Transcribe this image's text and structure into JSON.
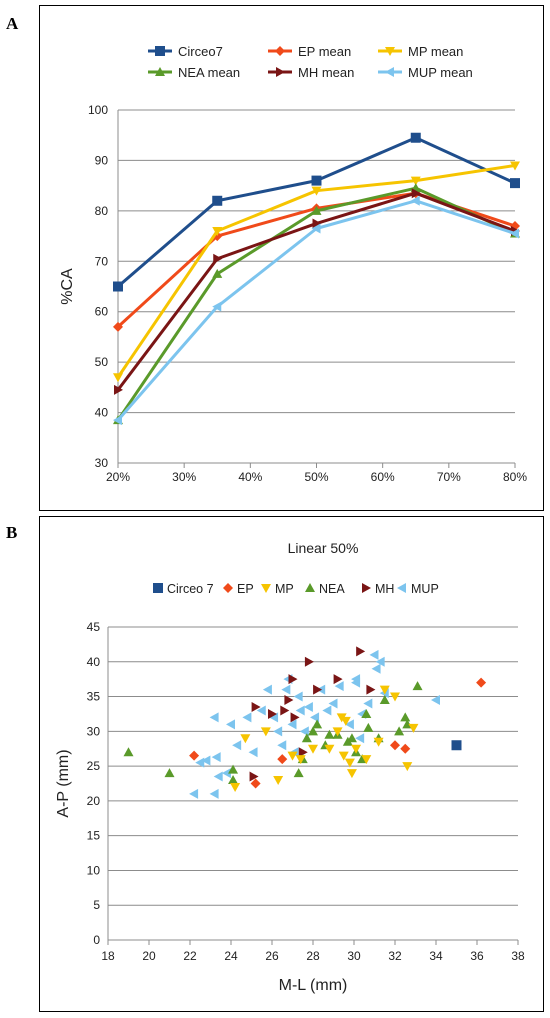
{
  "panels": {
    "a_label": "A",
    "b_label": "B"
  },
  "chart_data": [
    {
      "type": "line",
      "title": "",
      "xlabel": "",
      "ylabel": "%CA",
      "categories": [
        "20%",
        "35%",
        "50%",
        "65%",
        "80%"
      ],
      "x_ticks": [
        "20%",
        "30%",
        "40%",
        "50%",
        "60%",
        "70%",
        "80%"
      ],
      "ylim": [
        30,
        100
      ],
      "y_ticks": [
        "30",
        "40",
        "50",
        "60",
        "70",
        "80",
        "90",
        "100"
      ],
      "grid": true,
      "legend_position": "top",
      "series": [
        {
          "name": "Circeo7",
          "color": "#1f4e8c",
          "marker": "square",
          "values": [
            65,
            82,
            86,
            94.5,
            85.5
          ]
        },
        {
          "name": "EP mean",
          "color": "#f04a1a",
          "marker": "diamond",
          "values": [
            57,
            75,
            80.5,
            83.5,
            77
          ]
        },
        {
          "name": "MP mean",
          "color": "#f6c400",
          "marker": "triangle-down",
          "values": [
            47,
            76,
            84,
            86,
            89
          ]
        },
        {
          "name": "NEA mean",
          "color": "#5a9a2a",
          "marker": "triangle-up",
          "values": [
            38.5,
            67.5,
            80,
            84.5,
            75.5
          ]
        },
        {
          "name": "MH mean",
          "color": "#7a1515",
          "marker": "triangle-right",
          "values": [
            44.5,
            70.5,
            77.5,
            83.5,
            76
          ]
        },
        {
          "name": "MUP mean",
          "color": "#7cc4ee",
          "marker": "triangle-left",
          "values": [
            38.5,
            61,
            76.5,
            82,
            75.5
          ]
        }
      ]
    },
    {
      "type": "scatter",
      "title": "Linear 50%",
      "xlabel": "M-L (mm)",
      "ylabel": "A-P (mm)",
      "xlim": [
        18,
        38
      ],
      "ylim": [
        0,
        45
      ],
      "x_ticks": [
        "18",
        "20",
        "22",
        "24",
        "26",
        "28",
        "30",
        "32",
        "34",
        "36",
        "38"
      ],
      "y_ticks": [
        "0",
        "5",
        "10",
        "15",
        "20",
        "25",
        "30",
        "35",
        "40",
        "45"
      ],
      "grid": true,
      "legend_position": "top",
      "series": [
        {
          "name": "Circeo 7",
          "color": "#1f4e8c",
          "marker": "square",
          "points": [
            [
              35,
              28
            ]
          ]
        },
        {
          "name": "EP",
          "color": "#f04a1a",
          "marker": "diamond",
          "points": [
            [
              22.2,
              26.5
            ],
            [
              25.2,
              22.5
            ],
            [
              26.5,
              26
            ],
            [
              32,
              28
            ],
            [
              32.5,
              27.5
            ],
            [
              36.2,
              37
            ]
          ]
        },
        {
          "name": "MP",
          "color": "#f6c400",
          "marker": "triangle-down",
          "points": [
            [
              24.2,
              22
            ],
            [
              24.7,
              29
            ],
            [
              25.7,
              30
            ],
            [
              26.3,
              23
            ],
            [
              27,
              26.5
            ],
            [
              27.4,
              26
            ],
            [
              28,
              27.5
            ],
            [
              28.8,
              27.5
            ],
            [
              29.2,
              30
            ],
            [
              29.4,
              32
            ],
            [
              29.6,
              31.5
            ],
            [
              29.5,
              26.5
            ],
            [
              29.8,
              25.5
            ],
            [
              29.9,
              24
            ],
            [
              30.1,
              27.5
            ],
            [
              30.6,
              26
            ],
            [
              31.2,
              28.5
            ],
            [
              31.5,
              36
            ],
            [
              32,
              35
            ],
            [
              32.6,
              25
            ],
            [
              32.9,
              30.5
            ]
          ]
        },
        {
          "name": "NEA",
          "color": "#5a9a2a",
          "marker": "triangle-up",
          "points": [
            [
              19,
              27
            ],
            [
              21,
              24
            ],
            [
              24.1,
              24.5
            ],
            [
              24.1,
              23
            ],
            [
              27.3,
              24
            ],
            [
              27.5,
              26
            ],
            [
              27.7,
              29
            ],
            [
              28,
              30
            ],
            [
              28.2,
              31
            ],
            [
              28.6,
              28
            ],
            [
              28.8,
              29.5
            ],
            [
              29.2,
              29.5
            ],
            [
              29.7,
              28.5
            ],
            [
              29.9,
              29
            ],
            [
              30.1,
              27
            ],
            [
              30.4,
              26
            ],
            [
              30.7,
              30.5
            ],
            [
              30.6,
              32.5
            ],
            [
              31.2,
              29
            ],
            [
              31.5,
              34.5
            ],
            [
              32.2,
              30
            ],
            [
              32.5,
              32
            ],
            [
              32.6,
              31
            ],
            [
              33.1,
              36.5
            ]
          ]
        },
        {
          "name": "MH",
          "color": "#7a1515",
          "marker": "triangle-right",
          "points": [
            [
              25.1,
              23.5
            ],
            [
              25.2,
              33.5
            ],
            [
              26,
              32.5
            ],
            [
              26.6,
              33
            ],
            [
              26.8,
              34.5
            ],
            [
              27.1,
              32
            ],
            [
              27,
              37.5
            ],
            [
              27.5,
              27
            ],
            [
              27.8,
              40
            ],
            [
              28.2,
              36
            ],
            [
              29.2,
              37.5
            ],
            [
              30.3,
              41.5
            ],
            [
              30.8,
              36
            ]
          ]
        },
        {
          "name": "MUP",
          "color": "#7cc4ee",
          "marker": "triangle-left",
          "points": [
            [
              22.2,
              21
            ],
            [
              23.2,
              21
            ],
            [
              22.5,
              25.5
            ],
            [
              22.8,
              25.8
            ],
            [
              23.3,
              26.3
            ],
            [
              23.2,
              32
            ],
            [
              23.4,
              23.5
            ],
            [
              23.8,
              24
            ],
            [
              24,
              31
            ],
            [
              24.3,
              28
            ],
            [
              24.8,
              32
            ],
            [
              25.1,
              27
            ],
            [
              25.5,
              33
            ],
            [
              25.8,
              36
            ],
            [
              26.1,
              32
            ],
            [
              26.3,
              30
            ],
            [
              26.5,
              28
            ],
            [
              26.7,
              36
            ],
            [
              26.8,
              37.5
            ],
            [
              27,
              31
            ],
            [
              27.1,
              27
            ],
            [
              27.3,
              35
            ],
            [
              27.4,
              33
            ],
            [
              27.6,
              30
            ],
            [
              27.8,
              33.5
            ],
            [
              28.1,
              32
            ],
            [
              28.4,
              36
            ],
            [
              28.7,
              33
            ],
            [
              29,
              34
            ],
            [
              29.3,
              36.5
            ],
            [
              29.8,
              31
            ],
            [
              30.1,
              37
            ],
            [
              30.1,
              37.5
            ],
            [
              30.3,
              29
            ],
            [
              30.4,
              32.5
            ],
            [
              30.7,
              34
            ],
            [
              31,
              41
            ],
            [
              31.1,
              39
            ],
            [
              31.3,
              40
            ],
            [
              31.5,
              35.5
            ],
            [
              34,
              34.5
            ]
          ]
        }
      ]
    }
  ]
}
